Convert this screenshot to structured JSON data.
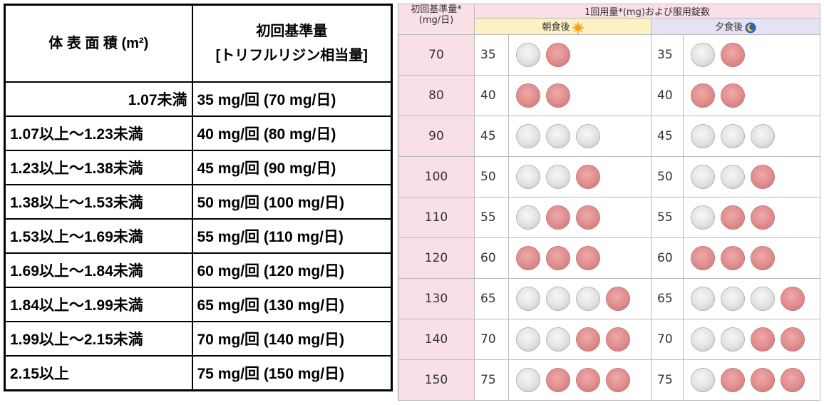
{
  "left_table": {
    "header": [
      "体 表 面 積 (m²)",
      [
        "初回基準量",
        "[トリフルリジン相当量]"
      ]
    ],
    "rows": [
      [
        "1.07未満",
        "35 mg/回 (70 mg/日)"
      ],
      [
        "1.07以上～1.23未満",
        "40 mg/回 (80 mg/日)"
      ],
      [
        "1.23以上～1.38未満",
        "45 mg/回 (90 mg/日)"
      ],
      [
        "1.38以上～1.53未満",
        "50 mg/回 (100 mg/日)"
      ],
      [
        "1.53以上～1.69未満",
        "55 mg/回 (110 mg/日)"
      ],
      [
        "1.69以上～1.84未満",
        "60 mg/回 (120 mg/日)"
      ],
      [
        "1.84以上～1.99未満",
        "65 mg/回 (130 mg/日)"
      ],
      [
        "1.99以上～2.15未満",
        "70 mg/回 (140 mg/日)"
      ],
      [
        "2.15以上",
        "75 mg/回 (150 mg/日)"
      ]
    ]
  },
  "right_table": {
    "header": {
      "base": [
        "初回基準量*",
        "(mg/日)"
      ],
      "dose": "1回用量*(mg)および服用錠数",
      "morning": "朝食後",
      "evening": "夕食後"
    },
    "rows": [
      [
        70,
        35,
        35
      ],
      [
        80,
        40,
        40
      ],
      [
        90,
        45,
        45
      ],
      [
        100,
        50,
        50
      ],
      [
        110,
        55,
        55
      ],
      [
        120,
        60,
        60
      ],
      [
        130,
        65,
        65
      ],
      [
        140,
        70,
        70
      ],
      [
        150,
        75,
        75
      ]
    ]
  }
}
